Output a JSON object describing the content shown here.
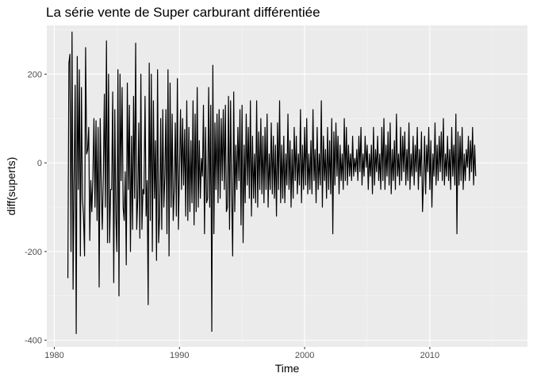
{
  "chart_data": {
    "type": "line",
    "title": "La série vente de Super carburant différentiée",
    "xlabel": "Time",
    "ylabel": "diff(superts)",
    "xlim": [
      1979.4,
      2017.8
    ],
    "ylim": [
      -415,
      310
    ],
    "x_ticks": [
      1980,
      1990,
      2000,
      2010
    ],
    "x_tick_labels": [
      "1980",
      "1990",
      "2000",
      "2010"
    ],
    "y_ticks": [
      -400,
      -200,
      0,
      200
    ],
    "y_tick_labels": [
      "-400",
      "-200",
      "0",
      "200"
    ],
    "grid": true,
    "background": "#EBEBEB",
    "line_color": "#000000",
    "series": [
      {
        "x_start": 1981.083,
        "x_step": 0.083333,
        "values": [
          -260,
          225,
          245,
          -200,
          295,
          -285,
          -30,
          175,
          -385,
          240,
          -60,
          210,
          -210,
          170,
          -80,
          -120,
          -210,
          260,
          20,
          30,
          80,
          -175,
          -40,
          -110,
          -30,
          100,
          -100,
          95,
          -130,
          80,
          -280,
          100,
          -50,
          -150,
          -30,
          155,
          -100,
          275,
          -180,
          200,
          -180,
          -60,
          -60,
          160,
          -270,
          120,
          -120,
          -200,
          210,
          -300,
          200,
          -40,
          170,
          -100,
          -130,
          -20,
          -230,
          180,
          -60,
          130,
          -200,
          60,
          -150,
          150,
          -80,
          270,
          -150,
          -80,
          90,
          -170,
          200,
          -150,
          -60,
          -70,
          150,
          -120,
          -40,
          -320,
          225,
          -130,
          200,
          -200,
          140,
          -80,
          50,
          -220,
          210,
          -180,
          -120,
          100,
          -150,
          120,
          -100,
          -30,
          120,
          -160,
          210,
          -210,
          180,
          -100,
          110,
          -130,
          -60,
          90,
          -120,
          190,
          -150,
          -20,
          120,
          -60,
          100,
          -50,
          75,
          -120,
          140,
          -130,
          80,
          -110,
          50,
          -90,
          140,
          -140,
          110,
          -110,
          170,
          -100,
          50,
          -80,
          10,
          -30,
          130,
          -160,
          80,
          -90,
          -80,
          170,
          -100,
          130,
          -380,
          220,
          -160,
          90,
          -60,
          110,
          -90,
          120,
          -80,
          100,
          -40,
          120,
          -60,
          130,
          -110,
          -100,
          150,
          -150,
          140,
          -70,
          -210,
          160,
          -110,
          40,
          -60,
          80,
          -40,
          120,
          -140,
          130,
          -180,
          40,
          -90,
          110,
          -50,
          80,
          -80,
          140,
          -120,
          60,
          -80,
          20,
          -90,
          140,
          -100,
          70,
          -60,
          100,
          -70,
          60,
          -90,
          80,
          -60,
          110,
          -100,
          20,
          -60,
          90,
          -70,
          60,
          -80,
          40,
          -120,
          90,
          -60,
          140,
          -90,
          40,
          -80,
          60,
          -90,
          20,
          -50,
          110,
          -60,
          50,
          -100,
          30,
          -80,
          80,
          -40,
          60,
          -70,
          20,
          -50,
          120,
          -90,
          40,
          -60,
          80,
          -50,
          100,
          -70,
          20,
          -60,
          50,
          -70,
          120,
          -40,
          30,
          -90,
          80,
          -60,
          20,
          -50,
          140,
          -100,
          60,
          -40,
          30,
          -80,
          80,
          -60,
          50,
          -70,
          100,
          -160,
          70,
          -50,
          90,
          -30,
          60,
          -70,
          40,
          -40,
          20,
          -60,
          100,
          -40,
          80,
          -50,
          40,
          -30,
          20,
          -40,
          60,
          -30,
          10,
          -20,
          30,
          -40,
          60,
          -20,
          80,
          -50,
          20,
          -30,
          60,
          -10,
          40,
          -60,
          20,
          -30,
          40,
          -70,
          80,
          -50,
          30,
          -20,
          60,
          -40,
          20,
          -60,
          80,
          -40,
          100,
          -60,
          40,
          -30,
          70,
          -50,
          90,
          -70,
          30,
          -40,
          50,
          -60,
          110,
          -30,
          20,
          -50,
          80,
          -40,
          60,
          -20,
          70,
          -50,
          30,
          -40,
          90,
          -60,
          20,
          -30,
          60,
          -50,
          40,
          -20,
          80,
          -60,
          30,
          -30,
          70,
          -110,
          -40,
          60,
          -70,
          40,
          -20,
          80,
          -60,
          50,
          -100,
          20,
          -30,
          90,
          -50,
          40,
          -40,
          60,
          -20,
          70,
          -40,
          100,
          -50,
          20,
          -30,
          60,
          -40,
          30,
          -60,
          80,
          -30,
          40,
          -50,
          110,
          -160,
          70,
          -50,
          60,
          -40,
          80,
          -60,
          20,
          -40,
          30,
          -10,
          60,
          -40,
          50,
          -20,
          80,
          -50,
          40,
          -30
        ]
      }
    ]
  }
}
